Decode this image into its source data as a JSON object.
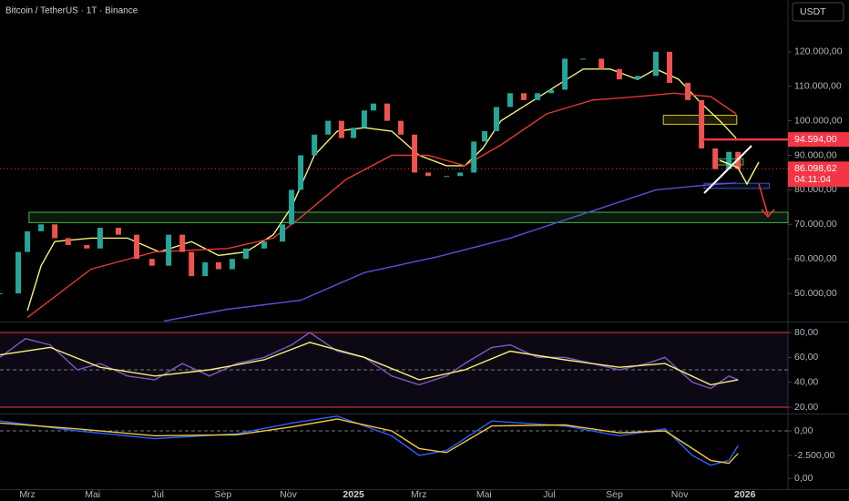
{
  "chart_data": [
    {
      "type": "candlestick",
      "title": "Bitcoin / TetherUS · 1T · Binance",
      "currency": "USDT",
      "up_color": "#26a69a",
      "down_color": "#ef5350",
      "xlim": [
        2.16,
        26.32
      ],
      "ylim": [
        42100,
        135000
      ],
      "yticks": [
        {
          "value": 120000,
          "label": "120.000,00"
        },
        {
          "value": 110000,
          "label": "110.000,00"
        },
        {
          "value": 100000,
          "label": "100.000,00"
        },
        {
          "value": 90000,
          "label": "90.000,00"
        },
        {
          "value": 80000,
          "label": "80.000,00"
        },
        {
          "value": 70000,
          "label": "70.000,00"
        },
        {
          "value": 60000,
          "label": "60.000,00"
        },
        {
          "value": 50000,
          "label": "50.000,00"
        }
      ],
      "x": [
        2.16,
        2.72,
        3.0,
        3.42,
        3.84,
        4.25,
        4.82,
        5.23,
        5.79,
        6.35,
        6.82,
        7.33,
        7.75,
        8.03,
        8.45,
        8.86,
        9.28,
        9.7,
        10.26,
        10.82,
        11.1,
        11.38,
        11.8,
        12.22,
        12.63,
        13.0,
        13.33,
        13.61,
        14.03,
        14.45,
        14.87,
        15.29,
        15.85,
        16.27,
        16.69,
        17.02,
        17.38,
        17.8,
        18.22,
        18.64,
        19.06,
        19.48,
        20.04,
        20.6,
        21.15,
        21.71,
        22.27,
        22.69,
        23.25,
        23.67,
        24.09,
        24.51,
        24.79
      ],
      "values": [
        50000,
        62000,
        68000,
        70000,
        66000,
        64000,
        63000,
        69000,
        67000,
        60000,
        58000,
        67000,
        62000,
        55000,
        59000,
        57000,
        60000,
        63000,
        65000,
        70000,
        80000,
        90000,
        96000,
        100000,
        95000,
        98000,
        103000,
        105000,
        100000,
        96000,
        85000,
        84000,
        84000,
        85000,
        94000,
        97000,
        104000,
        108000,
        106000,
        108000,
        109000,
        118000,
        118000,
        115000,
        112000,
        113000,
        120000,
        111000,
        106000,
        92000,
        86000,
        91000,
        86000
      ],
      "lines": [
        {
          "color": "#f5f07a",
          "x": [
            3.0,
            3.42,
            3.84,
            4.95,
            6.07,
            7.05,
            8.03,
            8.86,
            9.7,
            10.54,
            11.1,
            11.8,
            12.5,
            13.33,
            14.17,
            15.01,
            15.85,
            16.41,
            16.96,
            17.52,
            18.36,
            19.2,
            20.04,
            20.87,
            21.71,
            22.27,
            22.97,
            23.67,
            24.23,
            24.73
          ],
          "values": [
            45000,
            58000,
            65000,
            66000,
            66000,
            62000,
            65000,
            61000,
            62000,
            67000,
            75000,
            90000,
            97000,
            98000,
            97000,
            90000,
            87000,
            87000,
            92000,
            100000,
            105000,
            110000,
            115000,
            115000,
            112000,
            115000,
            112000,
            105000,
            100000,
            95000
          ]
        },
        {
          "color": "#e53935",
          "x": [
            3.0,
            4.95,
            6.91,
            9.14,
            10.54,
            11.38,
            12.77,
            14.17,
            15.29,
            16.41,
            17.52,
            18.92,
            20.32,
            21.71,
            22.83,
            23.95,
            24.73
          ],
          "values": [
            43000,
            57000,
            62000,
            63000,
            66000,
            72000,
            83000,
            90000,
            90000,
            87000,
            93000,
            102000,
            106000,
            107000,
            108000,
            107000,
            102000
          ]
        },
        {
          "color": "#5b4fd6",
          "x": [
            7.19,
            9.14,
            11.38,
            13.33,
            15.57,
            17.8,
            20.04,
            22.27,
            23.95,
            24.73
          ],
          "values": [
            42000,
            45400,
            48000,
            56000,
            60600,
            66000,
            73000,
            80000,
            81500,
            82000
          ]
        }
      ],
      "zones": [
        {
          "x": [
            3.05,
            26.32
          ],
          "y": [
            70500,
            73500
          ],
          "color": "#4caf50"
        },
        {
          "x": [
            22.5,
            24.75
          ],
          "y": [
            99000,
            101600
          ],
          "color": "#d4c52f"
        },
        {
          "x": [
            23.75,
            25.75
          ],
          "y": [
            80400,
            81900
          ],
          "color": "#3f51b5"
        },
        {
          "x": [
            24.05,
            24.95
          ],
          "y": [
            87200,
            89000
          ],
          "color": "#4caf50"
        }
      ],
      "level": {
        "value": 94594,
        "label": "94.594,00",
        "color": "#f23645",
        "x": 23.7
      },
      "last_price": 86098.62,
      "last_price_label": "86.098,62",
      "countdown": "04:11:04"
    },
    {
      "type": "line",
      "xlim": [
        2.16,
        26.32
      ],
      "ylim": [
        15.6,
        87.3
      ],
      "yticks": [
        {
          "value": 80,
          "label": "80,00"
        },
        {
          "value": 60,
          "label": "60,00"
        },
        {
          "value": 40,
          "label": "40,00"
        },
        {
          "value": 20,
          "label": "20,00"
        }
      ],
      "band_lines": [
        80,
        20
      ],
      "midline": 50,
      "series": [
        {
          "color": "#7e57c2",
          "x": [
            2.16,
            2.94,
            3.7,
            4.53,
            5.23,
            6.07,
            6.91,
            7.75,
            8.58,
            9.42,
            10.26,
            11.1,
            11.66,
            12.5,
            13.33,
            14.17,
            15.01,
            15.85,
            16.41,
            17.24,
            17.8,
            18.64,
            19.48,
            20.32,
            21.15,
            21.99,
            22.55,
            23.39,
            23.95,
            24.51,
            24.79
          ],
          "values": [
            60,
            75,
            70,
            50,
            55,
            45,
            42,
            55,
            45,
            55,
            60,
            70,
            80,
            65,
            60,
            45,
            38,
            45,
            55,
            68,
            70,
            60,
            60,
            55,
            50,
            55,
            60,
            40,
            35,
            45,
            42
          ]
        },
        {
          "color": "#f5f07a",
          "x": [
            2.16,
            3.7,
            5.23,
            6.91,
            8.58,
            10.26,
            11.66,
            13.33,
            15.01,
            16.41,
            17.8,
            19.48,
            21.15,
            22.55,
            23.95,
            24.79
          ],
          "values": [
            62,
            68,
            52,
            45,
            50,
            58,
            72,
            60,
            42,
            50,
            65,
            58,
            52,
            55,
            38,
            42
          ]
        }
      ]
    },
    {
      "type": "line",
      "xlim": [
        2.16,
        26.32
      ],
      "ylim": [
        -5926,
        1667
      ],
      "y2lim": [
        -0.25,
        1.5
      ],
      "yticks": [
        {
          "value": 0,
          "label": "0,00"
        },
        {
          "value": -2500,
          "label": "-2.500,00"
        }
      ],
      "y2ticks": [
        {
          "value": 0,
          "label": "0,00"
        }
      ],
      "midline": 0,
      "xticks": [
        {
          "value": 3,
          "label": "Mrz"
        },
        {
          "value": 5,
          "label": "Mai"
        },
        {
          "value": 7,
          "label": "Jul"
        },
        {
          "value": 9,
          "label": "Sep"
        },
        {
          "value": 11,
          "label": "Nov"
        },
        {
          "value": 13,
          "label": "2025"
        },
        {
          "value": 15,
          "label": "Mrz"
        },
        {
          "value": 17,
          "label": "Mai"
        },
        {
          "value": 19,
          "label": "Jul"
        },
        {
          "value": 21,
          "label": "Sep"
        },
        {
          "value": 23,
          "label": "Nov"
        },
        {
          "value": 25,
          "label": "2026"
        }
      ],
      "series": [
        {
          "color": "#2962ff",
          "x": [
            2.16,
            4.53,
            6.91,
            9.42,
            11.1,
            12.5,
            14.17,
            15.01,
            15.85,
            17.24,
            19.48,
            21.15,
            22.55,
            23.39,
            23.95,
            24.51,
            24.79
          ],
          "values": [
            1000,
            0,
            -800,
            -300,
            800,
            1500,
            -500,
            -2500,
            -2000,
            1000,
            500,
            -500,
            200,
            -2500,
            -3500,
            -3000,
            -1500
          ]
        },
        {
          "color": "#f5c542",
          "x": [
            2.16,
            4.53,
            6.91,
            9.42,
            11.1,
            12.5,
            14.17,
            15.01,
            15.85,
            17.24,
            19.48,
            21.15,
            22.55,
            23.39,
            23.95,
            24.51,
            24.79
          ],
          "values": [
            800,
            200,
            -500,
            -400,
            400,
            1200,
            0,
            -1800,
            -2200,
            500,
            600,
            -200,
            0,
            -1800,
            -3000,
            -3300,
            -2300
          ]
        }
      ]
    }
  ]
}
